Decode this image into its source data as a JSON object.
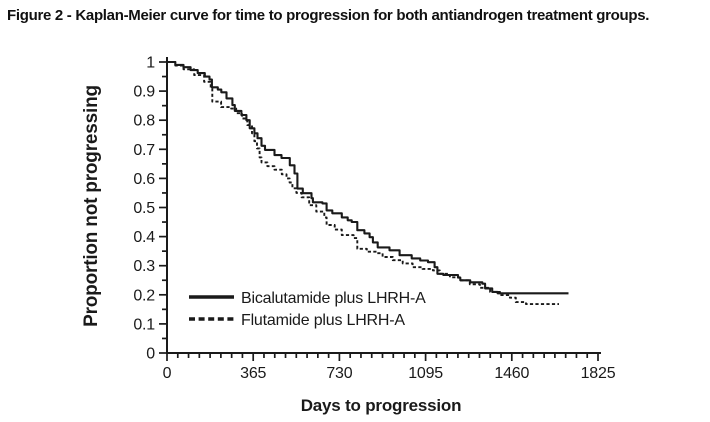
{
  "figure": {
    "title": "Figure 2 - Kaplan-Meier curve for time to progression for both antiandrogen treatment groups."
  },
  "chart_data": {
    "type": "line",
    "subtype": "kaplan-meier-step",
    "title": "Figure 2 - Kaplan-Meier curve for time to progression for both antiandrogen treatment groups.",
    "xlabel": "Days to progression",
    "ylabel": "Proportion not progressing",
    "xlim": [
      0,
      1825
    ],
    "ylim": [
      0,
      1
    ],
    "grid": false,
    "legend_position": "inside-lower-left",
    "x_ticks": [
      0,
      365,
      730,
      1095,
      1460,
      1825
    ],
    "x_tick_labels": [
      "0",
      "365",
      "730",
      "1095",
      "1460",
      "1825"
    ],
    "x_minor_tick_step": 45.625,
    "y_ticks": [
      0,
      0.1,
      0.2,
      0.3,
      0.4,
      0.5,
      0.6,
      0.7,
      0.8,
      0.9,
      1
    ],
    "y_tick_labels": [
      "0",
      "0.1",
      "0.2",
      "0.3",
      "0.4",
      "0.5",
      "0.6",
      "0.7",
      "0.8",
      "0.9",
      "1"
    ],
    "y_minor_tick_step": 0.05,
    "line_color": "#1a1a1a",
    "series": [
      {
        "name": "Bicalutamide plus LHRH-A",
        "style": "solid",
        "color": "#1a1a1a",
        "points": [
          [
            0,
            1.0
          ],
          [
            35,
            0.99
          ],
          [
            70,
            0.982
          ],
          [
            100,
            0.972
          ],
          [
            130,
            0.962
          ],
          [
            160,
            0.95
          ],
          [
            180,
            0.94
          ],
          [
            190,
            0.913
          ],
          [
            215,
            0.905
          ],
          [
            230,
            0.896
          ],
          [
            252,
            0.875
          ],
          [
            277,
            0.852
          ],
          [
            287,
            0.832
          ],
          [
            315,
            0.818
          ],
          [
            336,
            0.8
          ],
          [
            350,
            0.772
          ],
          [
            370,
            0.755
          ],
          [
            383,
            0.738
          ],
          [
            400,
            0.712
          ],
          [
            415,
            0.698
          ],
          [
            455,
            0.68
          ],
          [
            485,
            0.67
          ],
          [
            520,
            0.645
          ],
          [
            540,
            0.617
          ],
          [
            552,
            0.565
          ],
          [
            575,
            0.549
          ],
          [
            612,
            0.532
          ],
          [
            618,
            0.518
          ],
          [
            658,
            0.514
          ],
          [
            676,
            0.49
          ],
          [
            700,
            0.48
          ],
          [
            740,
            0.466
          ],
          [
            765,
            0.456
          ],
          [
            782,
            0.45
          ],
          [
            806,
            0.422
          ],
          [
            836,
            0.411
          ],
          [
            858,
            0.398
          ],
          [
            872,
            0.38
          ],
          [
            892,
            0.363
          ],
          [
            942,
            0.353
          ],
          [
            985,
            0.336
          ],
          [
            1036,
            0.325
          ],
          [
            1072,
            0.318
          ],
          [
            1105,
            0.312
          ],
          [
            1133,
            0.295
          ],
          [
            1145,
            0.272
          ],
          [
            1170,
            0.268
          ],
          [
            1232,
            0.259
          ],
          [
            1242,
            0.25
          ],
          [
            1284,
            0.243
          ],
          [
            1335,
            0.238
          ],
          [
            1347,
            0.222
          ],
          [
            1377,
            0.21
          ],
          [
            1400,
            0.205
          ],
          [
            1700,
            0.205
          ]
        ]
      },
      {
        "name": "Flutamide plus LHRH-A",
        "style": "dashed",
        "color": "#1a1a1a",
        "points": [
          [
            0,
            1.0
          ],
          [
            35,
            0.988
          ],
          [
            70,
            0.975
          ],
          [
            115,
            0.955
          ],
          [
            157,
            0.932
          ],
          [
            185,
            0.91
          ],
          [
            192,
            0.864
          ],
          [
            229,
            0.845
          ],
          [
            272,
            0.84
          ],
          [
            293,
            0.824
          ],
          [
            318,
            0.806
          ],
          [
            340,
            0.783
          ],
          [
            360,
            0.755
          ],
          [
            370,
            0.728
          ],
          [
            381,
            0.703
          ],
          [
            392,
            0.672
          ],
          [
            400,
            0.655
          ],
          [
            425,
            0.642
          ],
          [
            455,
            0.63
          ],
          [
            486,
            0.614
          ],
          [
            506,
            0.6
          ],
          [
            519,
            0.586
          ],
          [
            531,
            0.566
          ],
          [
            548,
            0.55
          ],
          [
            570,
            0.535
          ],
          [
            602,
            0.508
          ],
          [
            632,
            0.486
          ],
          [
            666,
            0.466
          ],
          [
            676,
            0.44
          ],
          [
            710,
            0.424
          ],
          [
            740,
            0.405
          ],
          [
            790,
            0.395
          ],
          [
            806,
            0.358
          ],
          [
            846,
            0.348
          ],
          [
            888,
            0.343
          ],
          [
            913,
            0.33
          ],
          [
            956,
            0.319
          ],
          [
            998,
            0.308
          ],
          [
            1040,
            0.295
          ],
          [
            1082,
            0.289
          ],
          [
            1126,
            0.284
          ],
          [
            1155,
            0.272
          ],
          [
            1198,
            0.26
          ],
          [
            1240,
            0.25
          ],
          [
            1282,
            0.236
          ],
          [
            1325,
            0.224
          ],
          [
            1368,
            0.21
          ],
          [
            1410,
            0.199
          ],
          [
            1452,
            0.19
          ],
          [
            1477,
            0.175
          ],
          [
            1520,
            0.168
          ],
          [
            1660,
            0.168
          ]
        ]
      }
    ]
  }
}
